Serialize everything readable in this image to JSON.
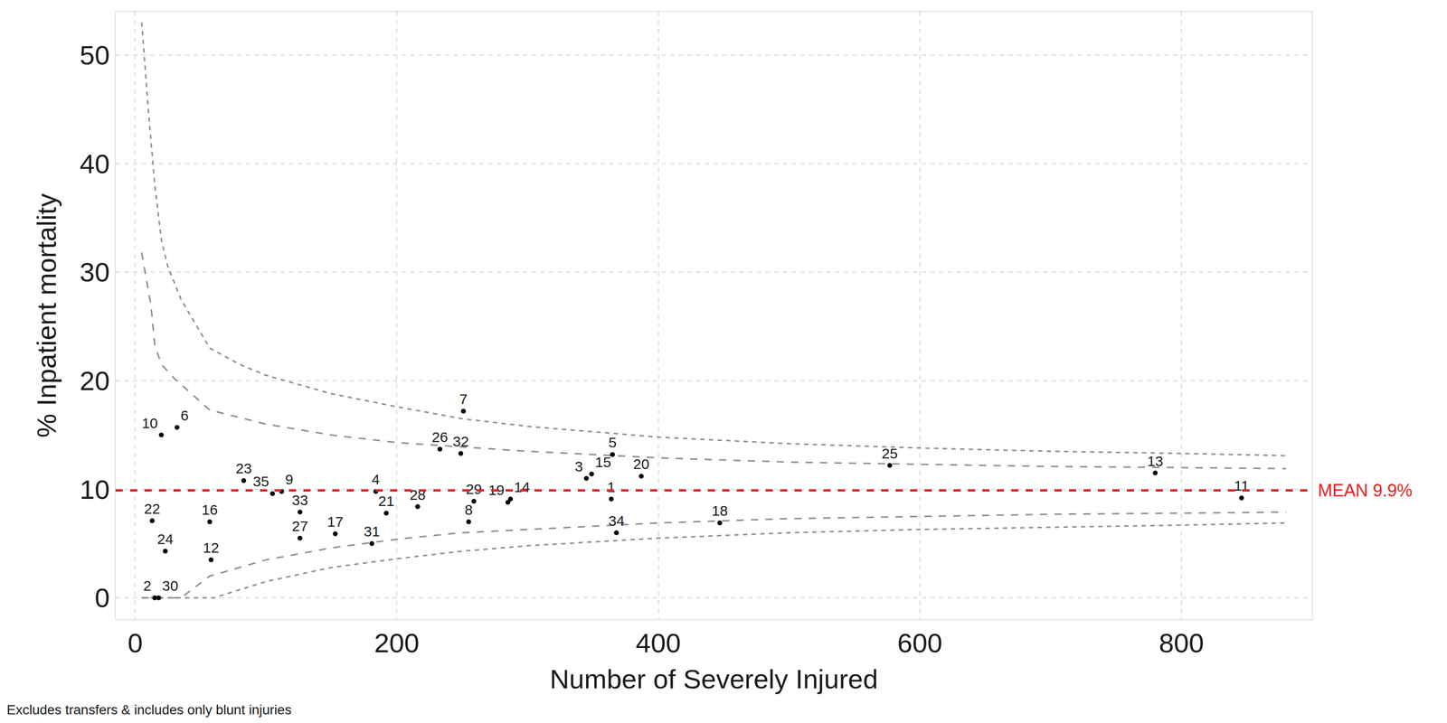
{
  "chart_data": {
    "type": "scatter",
    "x_label": "Number of Severely Injured",
    "y_label": "% Inpatient mortality",
    "note": "Excludes transfers & includes only blunt injuries",
    "xlim": [
      -15,
      900
    ],
    "ylim": [
      -2,
      54
    ],
    "xticks": [
      0,
      200,
      400,
      600,
      800
    ],
    "yticks": [
      0,
      10,
      20,
      30,
      40,
      50
    ],
    "grid": true,
    "points": {
      "color": "#000000",
      "marker": "circle",
      "labels": [
        "10",
        "6",
        "22",
        "24",
        "2",
        "30",
        "16",
        "12",
        "23",
        "35",
        "9",
        "33",
        "27",
        "17",
        "4",
        "31",
        "21",
        "28",
        "26",
        "32",
        "7",
        "29",
        "8",
        "19",
        "14",
        "3",
        "15",
        "5",
        "1",
        "20",
        "34",
        "18",
        "25",
        "13",
        "11"
      ],
      "x": [
        20,
        32,
        13,
        23,
        15,
        18,
        57,
        58,
        83,
        105,
        112,
        126,
        126,
        153,
        184,
        181,
        192,
        216,
        233,
        249,
        251,
        259,
        255,
        285,
        287,
        345,
        349,
        365,
        364,
        387,
        368,
        447,
        577,
        780,
        846
      ],
      "values": [
        15.0,
        15.7,
        7.1,
        4.3,
        0,
        0,
        7.0,
        3.5,
        10.8,
        9.6,
        9.8,
        7.9,
        5.5,
        5.9,
        9.8,
        5.0,
        7.8,
        8.4,
        13.7,
        13.3,
        17.2,
        8.9,
        7.0,
        8.8,
        9.1,
        11.0,
        11.4,
        13.2,
        9.1,
        11.2,
        6.0,
        6.9,
        12.2,
        11.5,
        9.2
      ]
    },
    "limits": [
      {
        "color": "#8c8c8c",
        "line_style": "dash",
        "x": [
          5,
          10,
          15,
          20,
          25,
          35,
          57,
          80,
          100,
          150,
          200,
          250,
          300,
          400,
          500,
          600,
          700,
          800,
          880
        ],
        "values": [
          53,
          45,
          38,
          33,
          30.5,
          27.5,
          23,
          21.5,
          20.5,
          18.8,
          17.6,
          16.5,
          15.8,
          14.8,
          14.2,
          13.8,
          13.5,
          13.3,
          13.1
        ]
      },
      {
        "color": "#8c8c8c",
        "line_style": "longdash",
        "x": [
          5,
          12,
          15,
          20,
          30,
          57,
          100,
          150,
          200,
          250,
          300,
          400,
          500,
          600,
          700,
          800,
          880
        ],
        "values": [
          31.8,
          27,
          23.3,
          21.5,
          20.2,
          17.3,
          16,
          15,
          14.3,
          13.9,
          13.5,
          12.9,
          12.5,
          12.3,
          12.1,
          12.0,
          11.9
        ]
      },
      {
        "color": "#8c8c8c",
        "line_style": "longdash",
        "x": [
          5,
          35,
          57,
          100,
          150,
          200,
          250,
          300,
          400,
          500,
          600,
          700,
          800,
          880
        ],
        "values": [
          0,
          0,
          2.0,
          3.5,
          4.6,
          5.4,
          6.0,
          6.3,
          6.9,
          7.3,
          7.5,
          7.7,
          7.8,
          7.9
        ]
      },
      {
        "color": "#8c8c8c",
        "line_style": "dash",
        "x": [
          5,
          60,
          100,
          150,
          200,
          250,
          300,
          400,
          500,
          600,
          700,
          800,
          880
        ],
        "values": [
          0,
          0,
          1.5,
          2.8,
          3.6,
          4.3,
          4.8,
          5.5,
          6.0,
          6.3,
          6.5,
          6.7,
          6.9
        ]
      }
    ],
    "mean": {
      "value": 9.9,
      "label": "MEAN 9.9%",
      "color": "#e8231e",
      "line_style": "dash"
    }
  }
}
